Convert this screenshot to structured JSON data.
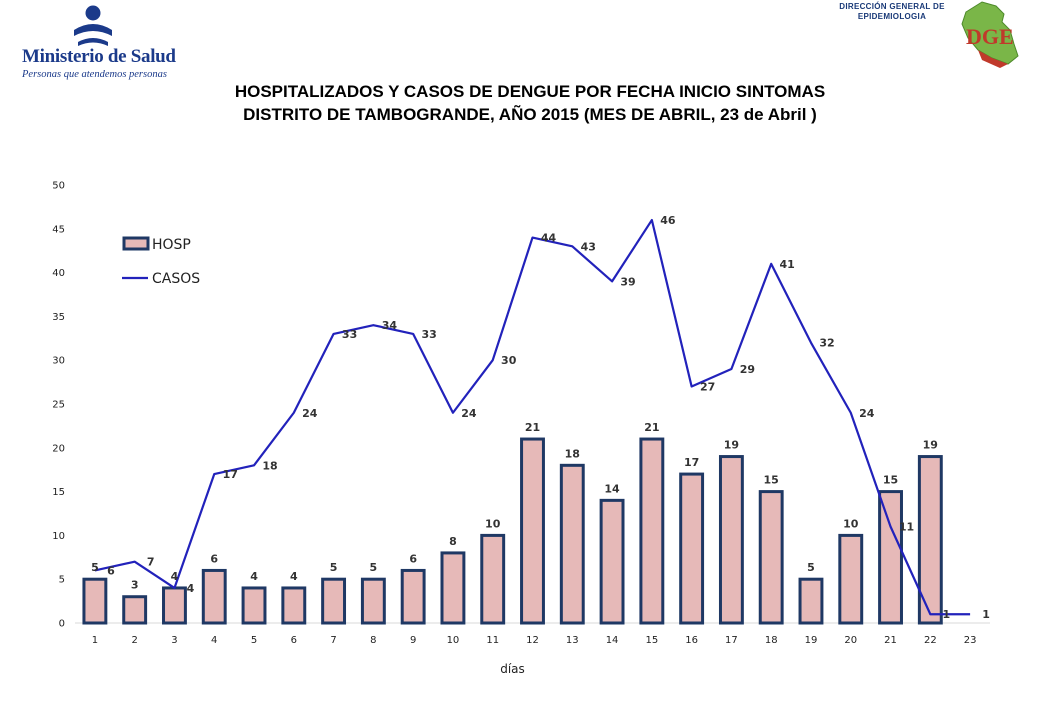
{
  "header": {
    "logo_name": "Ministerio de Salud",
    "logo_tagline": "Personas que atendemos personas",
    "dge_label_line1": "DIRECCIÓN GENERAL DE",
    "dge_label_line2": "EPIDEMIOLOGIA",
    "dge_letters": "DGE"
  },
  "chart_data": {
    "type": "bar+line",
    "title_line1": "HOSPITALIZADOS Y CASOS DE DENGUE POR FECHA INICIO SINTOMAS",
    "title_line2": "DISTRITO DE TAMBOGRANDE, AÑO 2015 (MES DE ABRIL, 23 de Abril )",
    "xlabel": "días",
    "ylabel": "",
    "ylim": [
      0,
      50
    ],
    "yticks": [
      0,
      5,
      10,
      15,
      20,
      25,
      30,
      35,
      40,
      45,
      50
    ],
    "categories": [
      "1",
      "2",
      "3",
      "4",
      "5",
      "6",
      "7",
      "8",
      "9",
      "10",
      "11",
      "12",
      "13",
      "14",
      "15",
      "16",
      "17",
      "18",
      "19",
      "20",
      "21",
      "22",
      "23"
    ],
    "legend_position": "top-left",
    "grid": false,
    "series": [
      {
        "name": "HOSP",
        "type": "bar",
        "fill": "#e6b9b8",
        "stroke": "#1f3864",
        "values": [
          5,
          3,
          4,
          6,
          4,
          4,
          5,
          5,
          6,
          8,
          10,
          21,
          18,
          14,
          21,
          17,
          19,
          15,
          5,
          10,
          15,
          19,
          null
        ]
      },
      {
        "name": "CASOS",
        "type": "line",
        "color": "#2222bb",
        "values": [
          6,
          7,
          4,
          17,
          18,
          24,
          33,
          34,
          33,
          24,
          30,
          44,
          43,
          39,
          46,
          27,
          29,
          41,
          32,
          24,
          11,
          1,
          1
        ]
      }
    ]
  }
}
